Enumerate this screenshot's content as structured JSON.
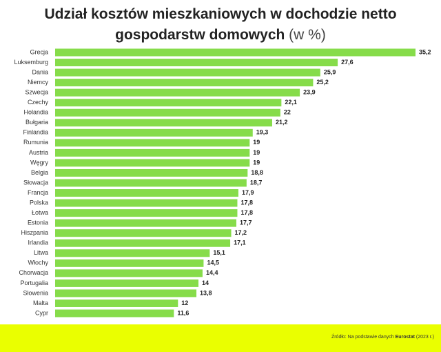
{
  "chart_data": {
    "type": "bar",
    "orientation": "horizontal",
    "title": "Udział kosztów mieszkaniowych w dochodzie netto gospodarstw domowych",
    "unit": "(w %)",
    "categories": [
      "Grecja",
      "Luksemburg",
      "Dania",
      "Niemcy",
      "Szwecja",
      "Czechy",
      "Holandia",
      "Bułgaria",
      "Finlandia",
      "Rumunia",
      "Austria",
      "Węgry",
      "Belgia",
      "Słowacja",
      "Francja",
      "Polska",
      "Łotwa",
      "Estonia",
      "Hiszpania",
      "Irlandia",
      "Litwa",
      "Włochy",
      "Chorwacja",
      "Portugalia",
      "Słowenia",
      "Malta",
      "Cypr"
    ],
    "values": [
      35.2,
      27.6,
      25.9,
      25.2,
      23.9,
      22.1,
      22,
      21.2,
      19.3,
      19,
      19,
      19,
      18.8,
      18.7,
      17.9,
      17.8,
      17.8,
      17.7,
      17.2,
      17.1,
      15.1,
      14.5,
      14.4,
      14,
      13.8,
      12,
      11.6
    ],
    "value_labels": [
      "35,2",
      "27,6",
      "25,9",
      "25,2",
      "23,9",
      "22,1",
      "22",
      "21,2",
      "19,3",
      "19",
      "19",
      "19",
      "18,8",
      "18,7",
      "17,9",
      "17,8",
      "17,8",
      "17,7",
      "17,2",
      "17,1",
      "15,1",
      "14,5",
      "14,4",
      "14",
      "13,8",
      "12",
      "11,6"
    ],
    "color": "#86dc4a",
    "source": {
      "text": "Źródło: Na podstawie danych",
      "emphasis": "Eurostat",
      "year": "(2023 r.)"
    }
  }
}
